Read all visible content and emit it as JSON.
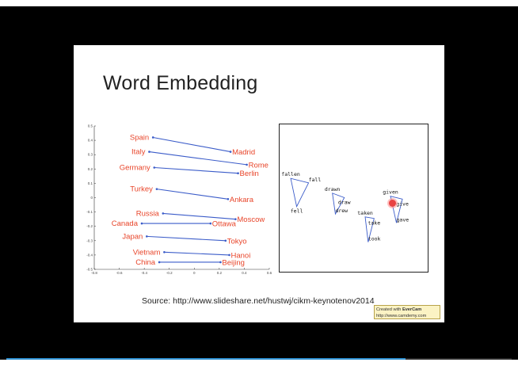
{
  "slide": {
    "title": "Word Embedding",
    "source": "Source: http://www.slideshare.net/hustwj/cikm-keynotenov2014"
  },
  "watermark": {
    "line1_prefix": "Created with ",
    "brand": "EverCam",
    "line2": "http://www.camdemy.com"
  },
  "player": {
    "progress": 0.79
  },
  "colors": {
    "label": "#e8452a",
    "line": "#3b5cc9",
    "cursor": "#e84242"
  },
  "chart_data": [
    {
      "type": "line",
      "xlim": [
        -0.8,
        0.6
      ],
      "ylim": [
        -0.5,
        0.5
      ],
      "xticks": [
        "-0.8",
        "-0.6",
        "-0.4",
        "-0.2",
        "0",
        "0.2",
        "0.4",
        "0.6"
      ],
      "yticks": [
        "0.5",
        "0.4",
        "0.3",
        "0.2",
        "0.1",
        "0",
        "-0.1",
        "-0.2",
        "-0.3",
        "-0.4",
        "-0.5"
      ],
      "pairs": [
        {
          "country": "Spain",
          "capital": "Madrid",
          "c": [
            -0.33,
            0.42
          ],
          "k": [
            0.29,
            0.32
          ]
        },
        {
          "country": "Italy",
          "capital": "Rome",
          "c": [
            -0.36,
            0.32
          ],
          "k": [
            0.42,
            0.23
          ]
        },
        {
          "country": "Germany",
          "capital": "Berlin",
          "c": [
            -0.32,
            0.21
          ],
          "k": [
            0.35,
            0.17
          ]
        },
        {
          "country": "Turkey",
          "capital": "Ankara",
          "c": [
            -0.3,
            0.06
          ],
          "k": [
            0.27,
            -0.01
          ]
        },
        {
          "country": "Russia",
          "capital": "Moscow",
          "c": [
            -0.25,
            -0.11
          ],
          "k": [
            0.33,
            -0.15
          ]
        },
        {
          "country": "Canada",
          "capital": "Ottawa",
          "c": [
            -0.42,
            -0.18
          ],
          "k": [
            0.13,
            -0.18
          ]
        },
        {
          "country": "Japan",
          "capital": "Tokyo",
          "c": [
            -0.38,
            -0.27
          ],
          "k": [
            0.25,
            -0.3
          ]
        },
        {
          "country": "Vietnam",
          "capital": "Hanoi",
          "c": [
            -0.24,
            -0.38
          ],
          "k": [
            0.28,
            -0.4
          ]
        },
        {
          "country": "China",
          "capital": "Beijing",
          "c": [
            -0.28,
            -0.45
          ],
          "k": [
            0.21,
            -0.45
          ]
        }
      ]
    },
    {
      "type": "scatter",
      "groups": [
        {
          "words": [
            {
              "w": "fallen",
              "p": [
                0.08,
                0.37
              ]
            },
            {
              "w": "fell",
              "p": [
                0.12,
                0.56
              ]
            },
            {
              "w": "fall",
              "p": [
                0.2,
                0.4
              ]
            }
          ]
        },
        {
          "words": [
            {
              "w": "drawn",
              "p": [
                0.36,
                0.47
              ]
            },
            {
              "w": "draw",
              "p": [
                0.44,
                0.5
              ]
            },
            {
              "w": "drew",
              "p": [
                0.38,
                0.61
              ]
            }
          ]
        },
        {
          "words": [
            {
              "w": "taken",
              "p": [
                0.58,
                0.63
              ]
            },
            {
              "w": "take",
              "p": [
                0.64,
                0.64
              ]
            },
            {
              "w": "took",
              "p": [
                0.6,
                0.8
              ]
            }
          ]
        },
        {
          "words": [
            {
              "w": "given",
              "p": [
                0.75,
                0.49
              ]
            },
            {
              "w": "give",
              "p": [
                0.83,
                0.51
              ]
            },
            {
              "w": "gave",
              "p": [
                0.79,
                0.67
              ]
            }
          ]
        }
      ]
    }
  ]
}
